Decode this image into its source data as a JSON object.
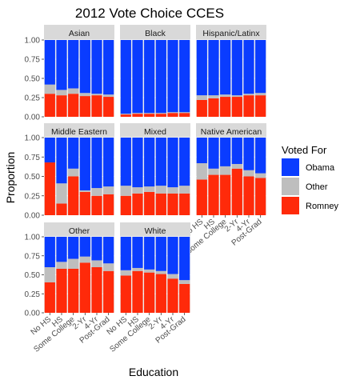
{
  "chart_data": {
    "type": "bar",
    "stacked": true,
    "faceted_by": "race",
    "title": "2012 Vote Choice CCES",
    "xlabel": "Education",
    "ylabel": "Proportion",
    "categories": [
      "No HS",
      "HS",
      "Some College",
      "2-Yr",
      "4-Yr",
      "Post-Grad"
    ],
    "yticks": [
      "0.00",
      "0.25",
      "0.50",
      "0.75",
      "1.00"
    ],
    "ylim": [
      0,
      1
    ],
    "legend": {
      "title": "Voted For",
      "position": "right",
      "items": [
        {
          "label": "Obama",
          "color": "#0a3cff"
        },
        {
          "label": "Other",
          "color": "#bebebe"
        },
        {
          "label": "Romney",
          "color": "#ff2a0a"
        }
      ]
    },
    "stack_order": [
      "Romney",
      "Other",
      "Obama"
    ],
    "colors": {
      "Obama": "#0a3cff",
      "Other": "#bebebe",
      "Romney": "#ff2a0a"
    },
    "panel_strip_color": "#d9d9d9",
    "panel_background": "#ebebeb",
    "grid": true,
    "facets": [
      {
        "name": "Asian",
        "series": {
          "Romney": [
            0.3,
            0.28,
            0.3,
            0.27,
            0.28,
            0.26
          ],
          "Other": [
            0.12,
            0.07,
            0.07,
            0.04,
            0.02,
            0.03
          ]
        }
      },
      {
        "name": "Black",
        "series": {
          "Romney": [
            0.03,
            0.04,
            0.04,
            0.04,
            0.05,
            0.05
          ],
          "Other": [
            0.01,
            0.01,
            0.01,
            0.01,
            0.01,
            0.01
          ]
        }
      },
      {
        "name": "Hispanic/Latinx",
        "series": {
          "Romney": [
            0.22,
            0.24,
            0.26,
            0.26,
            0.28,
            0.28
          ],
          "Other": [
            0.06,
            0.04,
            0.03,
            0.02,
            0.02,
            0.03
          ]
        }
      },
      {
        "name": "Middle Eastern",
        "series": {
          "Romney": [
            0.68,
            0.15,
            0.5,
            0.3,
            0.25,
            0.27
          ],
          "Other": [
            0.0,
            0.26,
            0.1,
            0.02,
            0.1,
            0.1
          ]
        }
      },
      {
        "name": "Mixed",
        "series": {
          "Romney": [
            0.25,
            0.28,
            0.3,
            0.28,
            0.28,
            0.28
          ],
          "Other": [
            0.13,
            0.08,
            0.07,
            0.1,
            0.08,
            0.1
          ]
        }
      },
      {
        "name": "Native American",
        "series": {
          "Romney": [
            0.46,
            0.52,
            0.52,
            0.6,
            0.5,
            0.48
          ],
          "Other": [
            0.21,
            0.08,
            0.11,
            0.06,
            0.08,
            0.06
          ]
        }
      },
      {
        "name": "Other",
        "series": {
          "Romney": [
            0.4,
            0.58,
            0.58,
            0.66,
            0.6,
            0.55
          ],
          "Other": [
            0.2,
            0.09,
            0.13,
            0.08,
            0.09,
            0.1
          ]
        }
      },
      {
        "name": "White",
        "series": {
          "Romney": [
            0.49,
            0.55,
            0.53,
            0.51,
            0.45,
            0.38
          ],
          "Other": [
            0.07,
            0.04,
            0.04,
            0.04,
            0.06,
            0.05
          ]
        }
      }
    ]
  }
}
